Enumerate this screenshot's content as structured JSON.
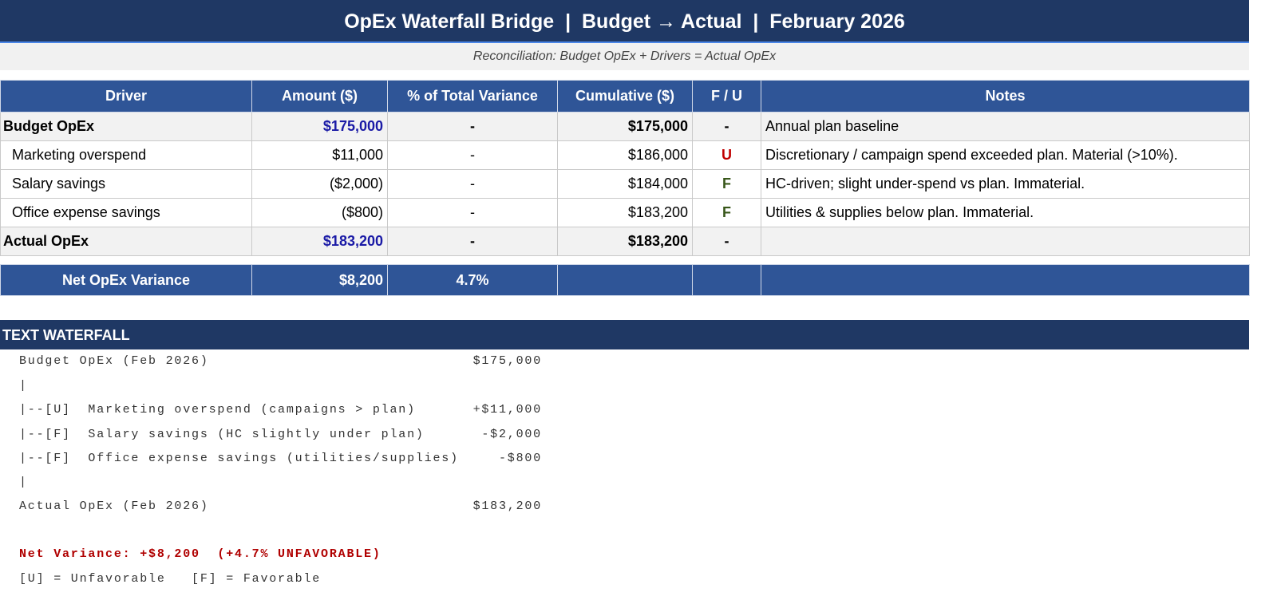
{
  "header": {
    "title": "OpEx Waterfall Bridge  |  Budget → Actual  |  February 2026",
    "subtitle": "Reconciliation: Budget OpEx + Drivers = Actual OpEx"
  },
  "table": {
    "columns": [
      "Driver",
      "Amount ($)",
      "% of Total Variance",
      "Cumulative ($)",
      "F / U",
      "Notes"
    ],
    "rows": [
      [
        "Budget OpEx",
        "$175,000",
        "-",
        "$175,000",
        "-",
        "Annual plan baseline"
      ],
      [
        "Marketing overspend",
        "$11,000",
        "-",
        "$186,000",
        "U",
        "Discretionary / campaign spend exceeded plan. Material (>10%)."
      ],
      [
        "Salary savings",
        "($2,000)",
        "-",
        "$184,000",
        "F",
        "HC-driven; slight under-spend vs plan. Immaterial."
      ],
      [
        "Office expense savings",
        "($800)",
        "-",
        "$183,200",
        "F",
        "Utilities & supplies below plan. Immaterial."
      ],
      [
        "Actual OpEx",
        "$183,200",
        "-",
        "$183,200",
        "-"
      ]
    ],
    "footer": [
      "Net OpEx Variance",
      "$8,200",
      "4.7%"
    ]
  },
  "text_waterfall": {
    "title": "TEXT WATERFALL",
    "lines": [
      {
        "label": "Budget OpEx (Feb 2026)",
        "amount": "$175,000"
      },
      {
        "label": "|"
      },
      {
        "label": "|--[U]  Marketing overspend (campaigns > plan)",
        "amount": "+$11,000"
      },
      {
        "label": "|--[F]  Salary savings (HC slightly under plan)",
        "amount": "-$2,000"
      },
      {
        "label": "|--[F]  Office expense savings (utilities/supplies)",
        "amount": "-$800"
      },
      {
        "label": "|"
      },
      {
        "label": "Actual OpEx (Feb 2026)",
        "amount": "$183,200"
      }
    ],
    "summary": "Net Variance: +$8,200  (+4.7% UNFAVORABLE)",
    "legend": "[U] = Unfavorable   [F] = Favorable"
  }
}
